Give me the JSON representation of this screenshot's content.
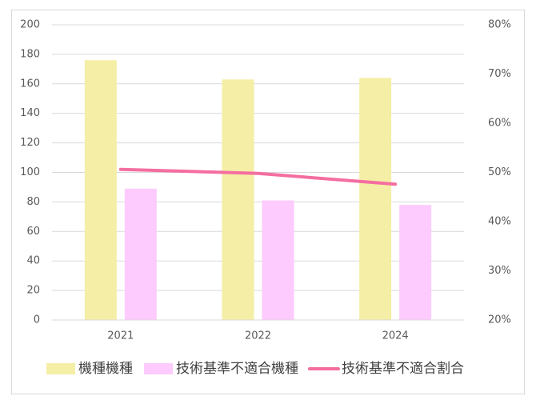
{
  "chart_data": {
    "type": "bar",
    "categories": [
      "2021",
      "2022",
      "2024"
    ],
    "series": [
      {
        "name": "機種機種",
        "color": "#f5eea6",
        "values": [
          176,
          163,
          164
        ]
      },
      {
        "name": "技術基準不適合機種",
        "color": "#fdcbfd",
        "values": [
          89,
          81,
          78
        ]
      },
      {
        "name": "技術基準不適合割合",
        "color": "#f46ea0",
        "type": "line",
        "axis": "y2",
        "values": [
          50.6,
          49.8,
          47.6
        ]
      }
    ],
    "ylim": [
      0,
      200
    ],
    "yticks": [
      0,
      20,
      40,
      60,
      80,
      100,
      120,
      140,
      160,
      180,
      200
    ],
    "y2lim": [
      20,
      80
    ],
    "y2ticks": [
      {
        "value": 20,
        "label": "20%"
      },
      {
        "value": 30,
        "label": "30%"
      },
      {
        "value": 40,
        "label": "40%"
      },
      {
        "value": 50,
        "label": "50%"
      },
      {
        "value": 60,
        "label": "60%"
      },
      {
        "value": 70,
        "label": "70%"
      },
      {
        "value": 80,
        "label": "80%"
      }
    ],
    "grid": true,
    "legend": "bottom"
  }
}
